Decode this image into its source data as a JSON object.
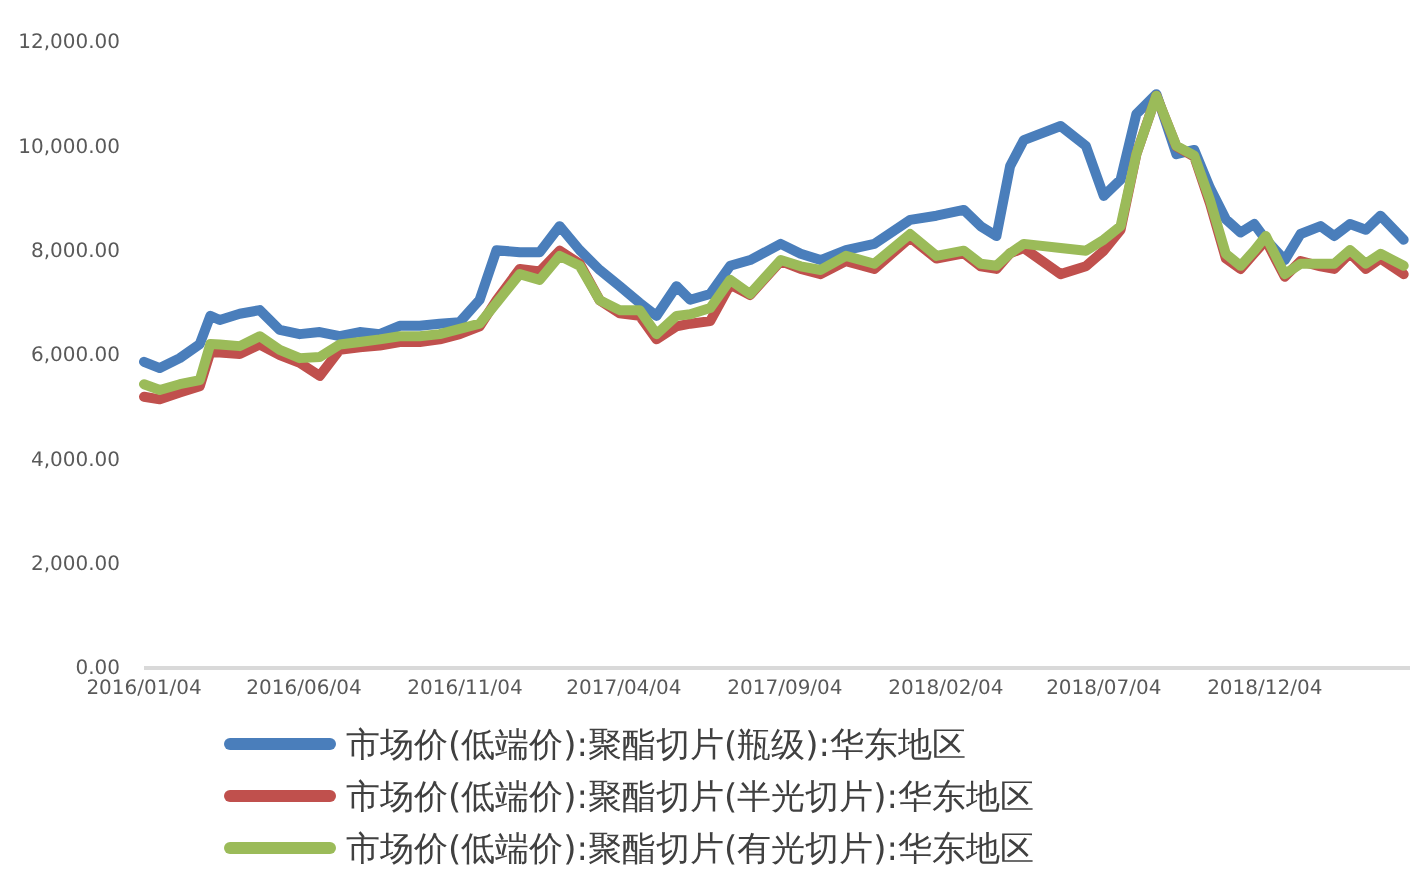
{
  "chart_data": {
    "type": "line",
    "x": [
      "2016-01-04",
      "2016-01-19",
      "2016-02-07",
      "2016-02-26",
      "2016-03-07",
      "2016-03-16",
      "2016-04-04",
      "2016-04-23",
      "2016-05-12",
      "2016-05-31",
      "2016-06-19",
      "2016-07-08",
      "2016-07-27",
      "2016-08-15",
      "2016-09-03",
      "2016-09-22",
      "2016-10-11",
      "2016-10-30",
      "2016-11-18",
      "2016-12-04",
      "2016-12-26",
      "2017-01-14",
      "2017-02-02",
      "2017-02-21",
      "2017-03-12",
      "2017-03-31",
      "2017-04-19",
      "2017-05-05",
      "2017-05-24",
      "2017-06-06",
      "2017-06-25",
      "2017-07-14",
      "2017-08-02",
      "2017-08-31",
      "2017-09-19",
      "2017-10-08",
      "2017-11-01",
      "2017-11-28",
      "2018-01-01",
      "2018-01-26",
      "2018-02-21",
      "2018-03-09",
      "2018-03-24",
      "2018-04-06",
      "2018-04-19",
      "2018-05-24",
      "2018-06-17",
      "2018-07-04",
      "2018-07-20",
      "2018-08-04",
      "2018-08-23",
      "2018-09-11",
      "2018-09-28",
      "2018-10-13",
      "2018-10-28",
      "2018-11-11",
      "2018-11-24",
      "2018-12-05",
      "2018-12-23",
      "2019-01-07",
      "2019-01-26",
      "2019-02-08",
      "2019-02-23",
      "2019-03-10",
      "2019-03-24",
      "2019-04-15"
    ],
    "series": [
      {
        "name": "市场价(低端价):聚酯切片(瓶级):华东地区",
        "color": "#4a7ebb",
        "values": [
          5870,
          5750,
          5940,
          6210,
          6750,
          6670,
          6790,
          6860,
          6480,
          6400,
          6440,
          6360,
          6440,
          6400,
          6560,
          6560,
          6600,
          6630,
          7060,
          8010,
          7970,
          7970,
          8470,
          8010,
          7630,
          7320,
          7000,
          6750,
          7320,
          7060,
          7170,
          7710,
          7820,
          8130,
          7940,
          7820,
          8010,
          8130,
          8590,
          8670,
          8780,
          8470,
          8280,
          9620,
          10120,
          10390,
          10010,
          9050,
          9360,
          10620,
          11000,
          9850,
          9930,
          9200,
          8600,
          8350,
          8510,
          8210,
          7820,
          8320,
          8470,
          8280,
          8510,
          8400,
          8670,
          8210
        ]
      },
      {
        "name": "市场价(低端价):聚酯切片(半光切片):华东地区",
        "color": "#c0504d",
        "values": [
          5200,
          5150,
          5280,
          5400,
          6050,
          6050,
          6020,
          6200,
          6000,
          5850,
          5600,
          6100,
          6150,
          6180,
          6250,
          6250,
          6300,
          6400,
          6550,
          7050,
          7650,
          7600,
          8000,
          7750,
          7050,
          6800,
          6750,
          6300,
          6550,
          6600,
          6650,
          7350,
          7150,
          7800,
          7650,
          7550,
          7800,
          7650,
          8250,
          7850,
          7950,
          7700,
          7650,
          7950,
          8050,
          7550,
          7700,
          8000,
          8400,
          9850,
          10970,
          10000,
          9800,
          8900,
          7850,
          7650,
          7950,
          8200,
          7500,
          7800,
          7700,
          7650,
          7950,
          7650,
          7850,
          7550
        ]
      },
      {
        "name": "市场价(低端价):聚酯切片(有光切片):华东地区",
        "color": "#9bbb59",
        "values": [
          5440,
          5330,
          5440,
          5520,
          6210,
          6200,
          6170,
          6360,
          6100,
          5940,
          5960,
          6200,
          6250,
          6300,
          6360,
          6360,
          6400,
          6500,
          6600,
          7000,
          7550,
          7440,
          7900,
          7710,
          7050,
          6860,
          6860,
          6400,
          6750,
          6780,
          6900,
          7440,
          7170,
          7820,
          7700,
          7630,
          7900,
          7750,
          8320,
          7900,
          8000,
          7750,
          7710,
          7950,
          8130,
          8050,
          8000,
          8210,
          8470,
          9850,
          10970,
          10010,
          9820,
          8970,
          7940,
          7710,
          8000,
          8280,
          7550,
          7750,
          7750,
          7750,
          8010,
          7750,
          7940,
          7710
        ]
      }
    ],
    "xlim": [
      "2016-01-04",
      "2019-04-21"
    ],
    "xticks": [
      {
        "value": "2016-01-04",
        "label": "2016/01/04"
      },
      {
        "value": "2016-06-04",
        "label": "2016/06/04"
      },
      {
        "value": "2016-11-04",
        "label": "2016/11/04"
      },
      {
        "value": "2017-04-04",
        "label": "2017/04/04"
      },
      {
        "value": "2017-09-04",
        "label": "2017/09/04"
      },
      {
        "value": "2018-02-04",
        "label": "2018/02/04"
      },
      {
        "value": "2018-07-04",
        "label": "2018/07/04"
      },
      {
        "value": "2018-12-04",
        "label": "2018/12/04"
      }
    ],
    "ylim": [
      0,
      12000
    ],
    "yticks": [
      {
        "value": 0,
        "label": "0.00"
      },
      {
        "value": 2000,
        "label": "2,000.00"
      },
      {
        "value": 4000,
        "label": "4,000.00"
      },
      {
        "value": 6000,
        "label": "6,000.00"
      },
      {
        "value": 8000,
        "label": "8,000.00"
      },
      {
        "value": 10000,
        "label": "10,000.00"
      },
      {
        "value": 12000,
        "label": "12,000.00"
      }
    ],
    "grid": false,
    "legend": "bottom",
    "marker": "none",
    "line_style": "solid"
  }
}
